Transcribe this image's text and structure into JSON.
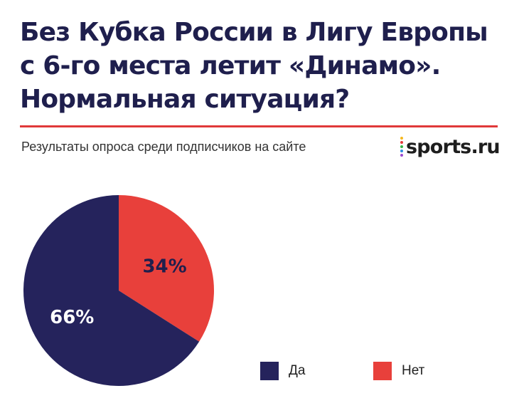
{
  "title": {
    "line1": "Без Кубка России в Лигу Европы",
    "line2": "с 6-го места летит «Динамо».",
    "line3": "Нормальная ситуация?"
  },
  "subtitle": "Результаты опроса среди подписчиков на сайте",
  "logo": {
    "text": "sports.ru",
    "dot_colors": [
      "#f6b81f",
      "#e73a3a",
      "#38b44a",
      "#2d8de0",
      "#9b4bd1"
    ]
  },
  "colors": {
    "accent_rule": "#e0393a",
    "yes": "#25235c",
    "no": "#e8403b",
    "title": "#1f1f4d"
  },
  "chart_data": {
    "type": "pie",
    "title": "",
    "slices": [
      {
        "label": "Да",
        "value": 66,
        "display": "66%",
        "color": "#25235c"
      },
      {
        "label": "Нет",
        "value": 34,
        "display": "34%",
        "color": "#e8403b"
      }
    ],
    "legend_position": "bottom-right"
  }
}
